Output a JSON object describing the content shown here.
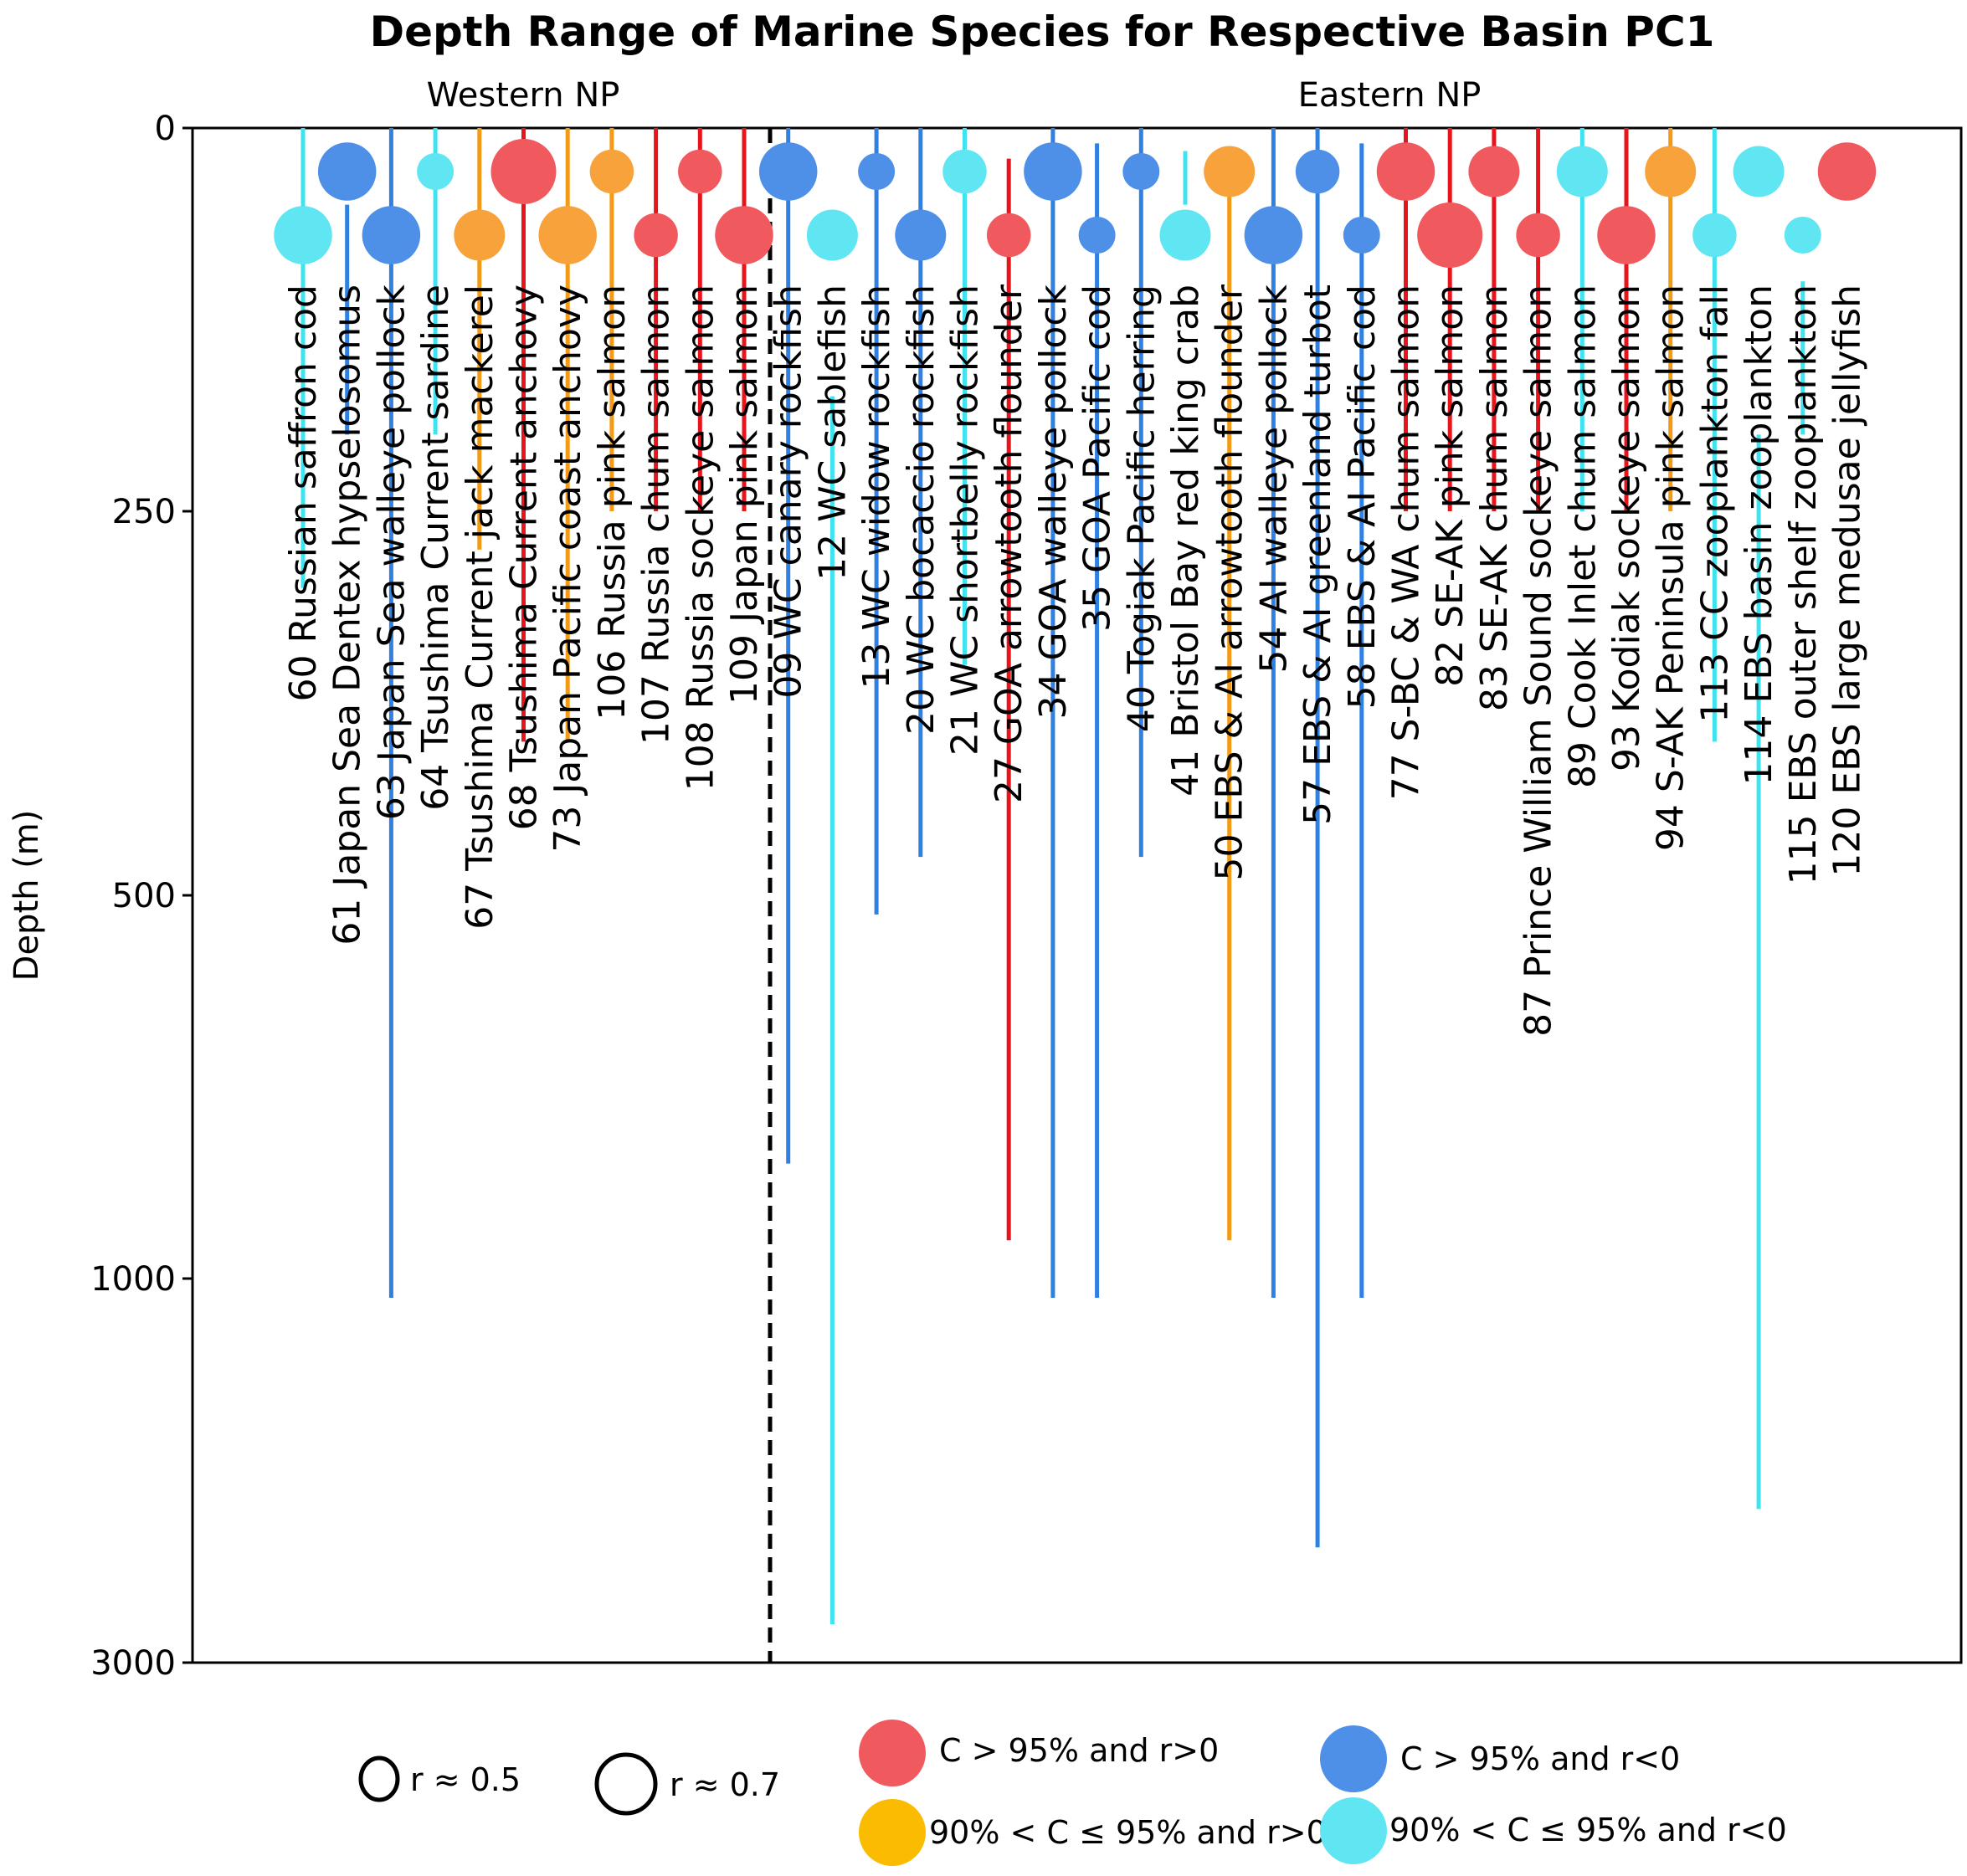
{
  "chart_data": {
    "type": "scatter",
    "title": "Depth Range of Marine Species for Respective Basin PC1",
    "ylabel": "Depth (m)",
    "y_ticks": [
      "0",
      "250",
      "500",
      "1000",
      "3000"
    ],
    "y_tick_values": [
      0,
      250,
      500,
      1000,
      3000
    ],
    "y_scale_note": "piecewise-linear depth axis",
    "regions": [
      {
        "name": "Western NP"
      },
      {
        "name": "Eastern NP"
      }
    ],
    "colors": {
      "red": "#f05a5e",
      "blue": "#4e8fe8",
      "orange": "#f7a23b",
      "cyan": "#5fe6f2"
    },
    "line_colors": {
      "red": "#e8141b",
      "blue": "#2f80e0",
      "orange": "#f39a17",
      "cyan": "#3fe3f0"
    },
    "species": [
      {
        "label": "60 Russian saffron cod",
        "region": "Western NP",
        "category": "cyan",
        "r": 0.65,
        "depth_min": 0,
        "depth_max": 300
      },
      {
        "label": "61 Japan Sea Dentex hypselosomus",
        "region": "Western NP",
        "category": "blue",
        "r": 0.65,
        "depth_min": 50,
        "depth_max": 200
      },
      {
        "label": "63 Japan Sea walleye pollock",
        "region": "Western NP",
        "category": "blue",
        "r": 0.65,
        "depth_min": 0,
        "depth_max": 1100
      },
      {
        "label": "64 Tsushima Current sardine",
        "region": "Western NP",
        "category": "cyan",
        "r": 0.5,
        "depth_min": 0,
        "depth_max": 200
      },
      {
        "label": "67 Tsushima Current jack mackerel",
        "region": "Western NP",
        "category": "orange",
        "r": 0.6,
        "depth_min": 0,
        "depth_max": 275
      },
      {
        "label": "68 Tsushima Current anchovy",
        "region": "Western NP",
        "category": "red",
        "r": 0.7,
        "depth_min": 0,
        "depth_max": 400
      },
      {
        "label": "73 Japan Pacific coast anchovy",
        "region": "Western NP",
        "category": "orange",
        "r": 0.65,
        "depth_min": 0,
        "depth_max": 400
      },
      {
        "label": "106 Russia pink salmon",
        "region": "Western NP",
        "category": "orange",
        "r": 0.55,
        "depth_min": 0,
        "depth_max": 250
      },
      {
        "label": "107 Russia chum salmon",
        "region": "Western NP",
        "category": "red",
        "r": 0.55,
        "depth_min": 0,
        "depth_max": 250
      },
      {
        "label": "108 Russia sockeye salmon",
        "region": "Western NP",
        "category": "red",
        "r": 0.55,
        "depth_min": 0,
        "depth_max": 250
      },
      {
        "label": "109 Japan pink salmon",
        "region": "Western NP",
        "category": "red",
        "r": 0.65,
        "depth_min": 0,
        "depth_max": 250
      },
      {
        "label": "09 WC canary rockfish",
        "region": "Eastern NP",
        "category": "blue",
        "r": 0.65,
        "depth_min": 0,
        "depth_max": 850
      },
      {
        "label": "12 WC sablefish",
        "region": "Eastern NP",
        "category": "cyan",
        "r": 0.6,
        "depth_min": 175,
        "depth_max": 2800
      },
      {
        "label": "13 WC widow rockfish",
        "region": "Eastern NP",
        "category": "blue",
        "r": 0.5,
        "depth_min": 0,
        "depth_max": 525
      },
      {
        "label": "20 WC bocaccio rockfish",
        "region": "Eastern NP",
        "category": "blue",
        "r": 0.6,
        "depth_min": 0,
        "depth_max": 475
      },
      {
        "label": "21 WC shortbelly rockfish",
        "region": "Eastern NP",
        "category": "cyan",
        "r": 0.55,
        "depth_min": 0,
        "depth_max": 350
      },
      {
        "label": "27 GOA arrowtooth flounder",
        "region": "Eastern NP",
        "category": "red",
        "r": 0.55,
        "depth_min": 20,
        "depth_max": 950
      },
      {
        "label": "34 GOA walleye pollock",
        "region": "Eastern NP",
        "category": "blue",
        "r": 0.65,
        "depth_min": 0,
        "depth_max": 1100
      },
      {
        "label": "35 GOA Pacific cod",
        "region": "Eastern NP",
        "category": "blue",
        "r": 0.5,
        "depth_min": 10,
        "depth_max": 1100
      },
      {
        "label": "40 Togiak Pacific herring",
        "region": "Eastern NP",
        "category": "blue",
        "r": 0.5,
        "depth_min": 0,
        "depth_max": 475
      },
      {
        "label": "41 Bristol Bay red king crab",
        "region": "Eastern NP",
        "category": "cyan",
        "r": 0.6,
        "depth_min": 15,
        "depth_max": 50
      },
      {
        "label": "50 EBS & AI arrowtooth flounder",
        "region": "Eastern NP",
        "category": "orange",
        "r": 0.6,
        "depth_min": 20,
        "depth_max": 950
      },
      {
        "label": "54 AI walleye pollock",
        "region": "Eastern NP",
        "category": "blue",
        "r": 0.65,
        "depth_min": 0,
        "depth_max": 1100
      },
      {
        "label": "57 EBS & AI greenland turbot",
        "region": "Eastern NP",
        "category": "blue",
        "r": 0.55,
        "depth_min": 0,
        "depth_max": 2400
      },
      {
        "label": "58 EBS & AI Pacific cod",
        "region": "Eastern NP",
        "category": "blue",
        "r": 0.5,
        "depth_min": 10,
        "depth_max": 1100
      },
      {
        "label": "77 S-BC & WA chum salmon",
        "region": "Eastern NP",
        "category": "red",
        "r": 0.65,
        "depth_min": 0,
        "depth_max": 250
      },
      {
        "label": "82 SE-AK pink salmon",
        "region": "Eastern NP",
        "category": "red",
        "r": 0.7,
        "depth_min": 0,
        "depth_max": 250
      },
      {
        "label": "83 SE-AK chum salmon",
        "region": "Eastern NP",
        "category": "red",
        "r": 0.6,
        "depth_min": 0,
        "depth_max": 250
      },
      {
        "label": "87 Prince William Sound sockeye salmon",
        "region": "Eastern NP",
        "category": "red",
        "r": 0.55,
        "depth_min": 0,
        "depth_max": 250
      },
      {
        "label": "89 Cook Inlet chum salmon",
        "region": "Eastern NP",
        "category": "cyan",
        "r": 0.6,
        "depth_min": 0,
        "depth_max": 250
      },
      {
        "label": "93 Kodiak sockeye salmon",
        "region": "Eastern NP",
        "category": "red",
        "r": 0.65,
        "depth_min": 0,
        "depth_max": 250
      },
      {
        "label": "94 S-AK Peninsula pink salmon",
        "region": "Eastern NP",
        "category": "orange",
        "r": 0.6,
        "depth_min": 0,
        "depth_max": 250
      },
      {
        "label": "113 CC zooplankton fall",
        "region": "Eastern NP",
        "category": "cyan",
        "r": 0.55,
        "depth_min": 0,
        "depth_max": 400
      },
      {
        "label": "114 EBS basin zooplankton",
        "region": "Eastern NP",
        "category": "cyan",
        "r": 0.6,
        "depth_min": 200,
        "depth_max": 2200
      },
      {
        "label": "115 EBS outer shelf zooplankton",
        "region": "Eastern NP",
        "category": "cyan",
        "r": 0.5,
        "depth_min": 100,
        "depth_max": 200
      },
      {
        "label": "120 EBS large medusae jellyfish",
        "region": "Eastern NP",
        "category": "red",
        "r": 0.65,
        "depth_min": 10,
        "depth_max": 40
      }
    ],
    "legend": {
      "size_labels": [
        "r ≈ 0.5",
        "r ≈ 0.7"
      ],
      "size_values": [
        0.5,
        0.7
      ],
      "color_labels": [
        {
          "category": "red",
          "text": "C > 95% and r>0"
        },
        {
          "category": "blue",
          "text": "C > 95% and r<0"
        },
        {
          "category": "orange",
          "text": "90% < C ≤ 95% and r>0"
        },
        {
          "category": "cyan",
          "text": "90% < C ≤ 95% and r<0"
        }
      ]
    }
  }
}
